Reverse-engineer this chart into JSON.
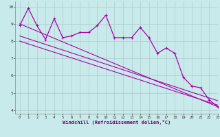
{
  "xlabel": "Windchill (Refroidissement éolien,°C)",
  "bg_color": "#c8eaea",
  "line_color": "#aa00aa",
  "grid_color": "#aacccc",
  "xlim": [
    -0.5,
    23
  ],
  "ylim": [
    3.8,
    10.3
  ],
  "xticks": [
    0,
    1,
    2,
    3,
    4,
    5,
    6,
    7,
    8,
    9,
    10,
    11,
    12,
    13,
    14,
    15,
    16,
    17,
    18,
    19,
    20,
    21,
    22,
    23
  ],
  "yticks": [
    4,
    5,
    6,
    7,
    8,
    9,
    10
  ],
  "main_x": [
    0,
    1,
    2,
    3,
    4,
    5,
    6,
    7,
    8,
    9,
    10,
    11,
    12,
    13,
    14,
    15,
    16,
    17,
    18,
    19,
    20,
    21,
    22,
    23
  ],
  "main_y": [
    8.9,
    9.9,
    8.9,
    8.1,
    9.3,
    8.2,
    8.3,
    8.5,
    8.5,
    8.9,
    9.5,
    8.2,
    8.2,
    8.2,
    8.8,
    8.2,
    7.3,
    7.6,
    7.3,
    5.9,
    5.4,
    5.3,
    4.6,
    4.2
  ],
  "trend1_x": [
    0,
    23
  ],
  "trend1_y": [
    9.0,
    4.2
  ],
  "trend2_x": [
    0,
    23
  ],
  "trend2_y": [
    8.3,
    4.55
  ],
  "trend3_x": [
    0,
    23
  ],
  "trend3_y": [
    8.0,
    4.3
  ]
}
